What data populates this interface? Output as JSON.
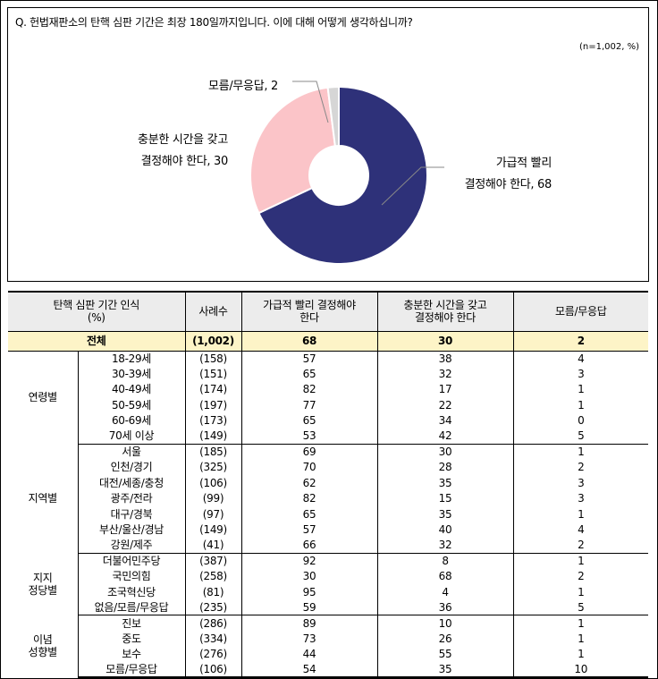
{
  "question": "Q. 헌법재판소의 탄핵 심판 기간은 최장 180일까지입니다. 이에 대해 어떻게 생각하십니까?",
  "note": "(n=1,002, %)",
  "chart_data": {
    "type": "pie",
    "labels": [
      "가급적 빨리 결정해야 한다",
      "충분한 시간을 갖고 결정해야 한다",
      "모름/무응답"
    ],
    "values": [
      68,
      30,
      2
    ],
    "colors": [
      "#2e3179",
      "#fbc4c8",
      "#d6d6d6"
    ]
  },
  "pie_labels": {
    "unknown": "모름/무응답, 2",
    "enough_line1": "충분한 시간을 갖고",
    "enough_line2": "결정해야 한다, 30",
    "fast_line1": "가급적 빨리",
    "fast_line2": "결정해야 한다, 68"
  },
  "table": {
    "header": {
      "category_line1": "탄핵 심판 기간 인식",
      "category_line2": "(%)",
      "n": "사례수",
      "col1_line1": "가급적 빨리 결정해야",
      "col1_line2": "한다",
      "col2_line1": "충분한 시간을 갖고",
      "col2_line2": "결정해야 한다",
      "col3": "모름/무응답"
    },
    "total": {
      "label": "전체",
      "n": "(1,002)",
      "v1": "68",
      "v2": "30",
      "v3": "2"
    },
    "groups": [
      {
        "name_line1": "연령별",
        "name_line2": "",
        "rows": [
          {
            "label": "18-29세",
            "n": "(158)",
            "v1": "57",
            "v2": "38",
            "v3": "4"
          },
          {
            "label": "30-39세",
            "n": "(151)",
            "v1": "65",
            "v2": "32",
            "v3": "3"
          },
          {
            "label": "40-49세",
            "n": "(174)",
            "v1": "82",
            "v2": "17",
            "v3": "1"
          },
          {
            "label": "50-59세",
            "n": "(197)",
            "v1": "77",
            "v2": "22",
            "v3": "1"
          },
          {
            "label": "60-69세",
            "n": "(173)",
            "v1": "65",
            "v2": "34",
            "v3": "0"
          },
          {
            "label": "70세 이상",
            "n": "(149)",
            "v1": "53",
            "v2": "42",
            "v3": "5"
          }
        ]
      },
      {
        "name_line1": "지역별",
        "name_line2": "",
        "rows": [
          {
            "label": "서울",
            "n": "(185)",
            "v1": "69",
            "v2": "30",
            "v3": "1"
          },
          {
            "label": "인천/경기",
            "n": "(325)",
            "v1": "70",
            "v2": "28",
            "v3": "2"
          },
          {
            "label": "대전/세종/충청",
            "n": "(106)",
            "v1": "62",
            "v2": "35",
            "v3": "3"
          },
          {
            "label": "광주/전라",
            "n": "(99)",
            "v1": "82",
            "v2": "15",
            "v3": "3"
          },
          {
            "label": "대구/경북",
            "n": "(97)",
            "v1": "65",
            "v2": "35",
            "v3": "1"
          },
          {
            "label": "부산/울산/경남",
            "n": "(149)",
            "v1": "57",
            "v2": "40",
            "v3": "4"
          },
          {
            "label": "강원/제주",
            "n": "(41)",
            "v1": "66",
            "v2": "32",
            "v3": "2"
          }
        ]
      },
      {
        "name_line1": "지지",
        "name_line2": "정당별",
        "rows": [
          {
            "label": "더불어민주당",
            "n": "(387)",
            "v1": "92",
            "v2": "8",
            "v3": "1"
          },
          {
            "label": "국민의힘",
            "n": "(258)",
            "v1": "30",
            "v2": "68",
            "v3": "2"
          },
          {
            "label": "조국혁신당",
            "n": "(81)",
            "v1": "95",
            "v2": "4",
            "v3": "1"
          },
          {
            "label": "없음/모름/무응답",
            "n": "(235)",
            "v1": "59",
            "v2": "36",
            "v3": "5"
          }
        ]
      },
      {
        "name_line1": "이념",
        "name_line2": "성향별",
        "rows": [
          {
            "label": "진보",
            "n": "(286)",
            "v1": "89",
            "v2": "10",
            "v3": "1"
          },
          {
            "label": "중도",
            "n": "(334)",
            "v1": "73",
            "v2": "26",
            "v3": "1"
          },
          {
            "label": "보수",
            "n": "(276)",
            "v1": "44",
            "v2": "55",
            "v3": "1"
          },
          {
            "label": "모름/무응답",
            "n": "(106)",
            "v1": "54",
            "v2": "35",
            "v3": "10"
          }
        ]
      }
    ]
  }
}
